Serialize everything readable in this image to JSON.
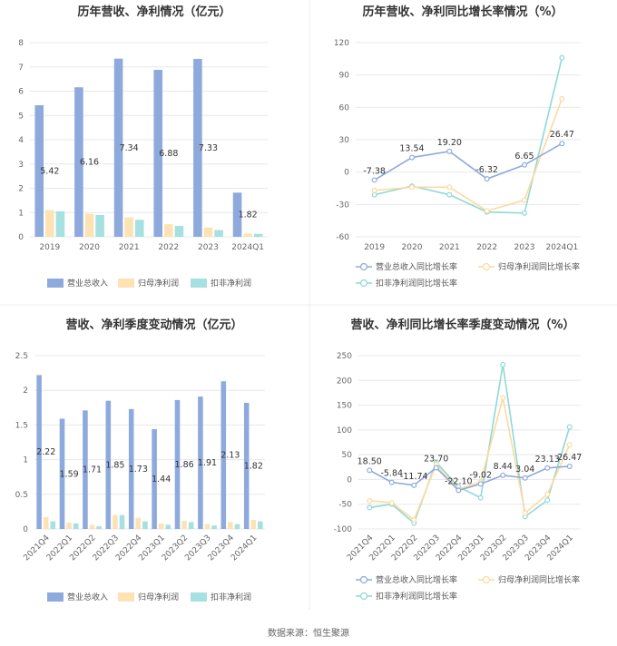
{
  "colors": {
    "revenue": "#8eaadc",
    "parent_profit": "#fde3b4",
    "deducted_profit": "#a6e0e0",
    "revenue_line": "#8eaadc",
    "parent_line": "#fdd9a0",
    "deducted_line": "#8fd8d8",
    "grid": "#e8e8e8",
    "divider": "#e6e6e6"
  },
  "source_text": "数据来源：恒生聚源",
  "chart_data": [
    {
      "type": "bar",
      "title": "历年营收、净利情况（亿元）",
      "categories": [
        "2019",
        "2020",
        "2021",
        "2022",
        "2023",
        "2024Q1"
      ],
      "ylim": [
        0,
        8
      ],
      "yticks": [
        0,
        1,
        2,
        3,
        4,
        5,
        6,
        7,
        8
      ],
      "grid": true,
      "legend_position": "bottom",
      "label_series": 0,
      "series": [
        {
          "name": "营业总收入",
          "color_key": "revenue",
          "values": [
            5.42,
            6.16,
            7.34,
            6.88,
            7.33,
            1.82
          ],
          "labels": [
            "5.42",
            "6.16",
            "7.34",
            "6.88",
            "7.33",
            "1.82"
          ]
        },
        {
          "name": "归母净利润",
          "color_key": "parent_profit",
          "values": [
            1.1,
            0.95,
            0.8,
            0.52,
            0.38,
            0.13
          ]
        },
        {
          "name": "扣非净利润",
          "color_key": "deducted_profit",
          "values": [
            1.05,
            0.9,
            0.7,
            0.45,
            0.28,
            0.12
          ]
        }
      ]
    },
    {
      "type": "line",
      "title": "历年营收、净利同比增长率情况（%）",
      "categories": [
        "2019",
        "2020",
        "2021",
        "2022",
        "2023",
        "2024Q1"
      ],
      "ylim": [
        -60,
        120
      ],
      "yticks": [
        -60,
        -30,
        0,
        30,
        60,
        90,
        120
      ],
      "grid": true,
      "legend_position": "bottom",
      "label_series": 0,
      "series": [
        {
          "name": "营业总收入同比增长率",
          "color_key": "revenue_line",
          "values": [
            -7.38,
            13.54,
            19.2,
            -6.32,
            6.65,
            26.47
          ],
          "labels": [
            "-7.38",
            "13.54",
            "19.20",
            "-6.32",
            "6.65",
            "26.47"
          ]
        },
        {
          "name": "归母净利润同比增长率",
          "color_key": "parent_line",
          "values": [
            -17,
            -14,
            -14,
            -36,
            -26,
            68
          ]
        },
        {
          "name": "扣非净利润同比增长率",
          "color_key": "deducted_line",
          "values": [
            -21,
            -13,
            -21,
            -37,
            -38,
            106
          ]
        }
      ]
    },
    {
      "type": "bar",
      "title": "营收、净利季度变动情况（亿元）",
      "categories": [
        "2021Q4",
        "2022Q1",
        "2022Q2",
        "2022Q3",
        "2022Q4",
        "2023Q1",
        "2023Q2",
        "2023Q3",
        "2023Q4",
        "2024Q1"
      ],
      "ylim": [
        0,
        2.5
      ],
      "yticks": [
        0,
        0.5,
        1,
        1.5,
        2,
        2.5
      ],
      "grid": true,
      "legend_position": "bottom",
      "label_series": 0,
      "series": [
        {
          "name": "营业总收入",
          "color_key": "revenue",
          "values": [
            2.22,
            1.59,
            1.71,
            1.85,
            1.73,
            1.44,
            1.86,
            1.91,
            2.13,
            1.82
          ],
          "labels": [
            "2.22",
            "1.59",
            "1.71",
            "1.85",
            "1.73",
            "1.44",
            "1.86",
            "1.91",
            "2.13",
            "1.82"
          ]
        },
        {
          "name": "归母净利润",
          "color_key": "parent_profit",
          "values": [
            0.17,
            0.09,
            0.06,
            0.2,
            0.16,
            0.08,
            0.12,
            0.07,
            0.1,
            0.13
          ]
        },
        {
          "name": "扣非净利润",
          "color_key": "deducted_profit",
          "values": [
            0.11,
            0.08,
            0.04,
            0.2,
            0.11,
            0.06,
            0.1,
            0.05,
            0.07,
            0.11
          ]
        }
      ]
    },
    {
      "type": "line",
      "title": "营收、净利同比增长率季度变动情况（%）",
      "categories": [
        "2021Q4",
        "2022Q1",
        "2022Q2",
        "2022Q3",
        "2022Q4",
        "2023Q1",
        "2023Q2",
        "2023Q3",
        "2023Q4",
        "2024Q1"
      ],
      "ylim": [
        -100,
        250
      ],
      "yticks": [
        -100,
        -50,
        0,
        50,
        100,
        150,
        200,
        250
      ],
      "grid": true,
      "legend_position": "bottom",
      "label_series": 0,
      "series": [
        {
          "name": "营业总收入同比增长率",
          "color_key": "revenue_line",
          "values": [
            18.5,
            -5.84,
            -11.74,
            23.7,
            -22.1,
            -9.02,
            8.44,
            3.04,
            23.13,
            26.47
          ],
          "labels": [
            "18.50",
            "-5.84",
            "-11.74",
            "23.70",
            "-22.10",
            "-9.02",
            "8.44",
            "3.04",
            "23.13",
            "26.47"
          ]
        },
        {
          "name": "归母净利润同比增长率",
          "color_key": "parent_line",
          "values": [
            -43,
            -47,
            -82,
            30,
            -20,
            -5,
            165,
            -68,
            -30,
            70
          ]
        },
        {
          "name": "扣非净利润同比增长率",
          "color_key": "deducted_line",
          "values": [
            -57,
            -50,
            -88,
            35,
            -15,
            -37,
            232,
            -75,
            -42,
            106
          ]
        }
      ]
    }
  ]
}
